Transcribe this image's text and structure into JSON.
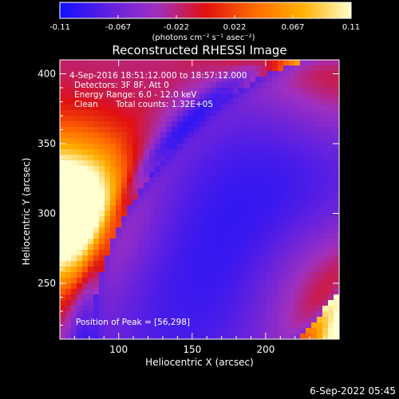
{
  "chart_data": {
    "type": "heatmap",
    "title": "Reconstructed RHESSI Image",
    "xlabel": "Heliocentric X (arcsec)",
    "ylabel": "Heliocentric Y (arcsec)",
    "xlim": [
      60,
      250
    ],
    "ylim": [
      210,
      410
    ],
    "x_ticks": [
      100,
      150,
      200
    ],
    "y_ticks": [
      250,
      300,
      350,
      400
    ],
    "colorbar": {
      "range": [
        -0.11,
        0.11
      ],
      "ticks": [
        "-0.11",
        "-0.067",
        "-0.022",
        "0.022",
        "0.067",
        "0.11"
      ],
      "unit_label": "(photons cm⁻² s⁻¹ asec⁻²)",
      "colormap_stops": [
        "#1010ff",
        "#6020e0",
        "#a030c0",
        "#e01010",
        "#ff6a00",
        "#ffb000",
        "#ffffd0"
      ]
    },
    "annotations": {
      "time_range": "4-Sep-2016 18:51:12.000 to 18:57:12.000",
      "detectors": "Detectors: 3F 8F, Att 0",
      "energy_range": "Energy Range: 6.0 - 12.0 keV",
      "algorithm": "Clean",
      "total_counts": "Total counts: 1.32E+05",
      "peak_position": "Position of Peak = [56,298]"
    },
    "field_description": {
      "minimum_center": [
        185,
        285
      ],
      "bright_regions": [
        {
          "location": "left edge",
          "center": [
            60,
            300
          ]
        },
        {
          "location": "top-right corner",
          "center": [
            250,
            410
          ]
        },
        {
          "location": "bottom-right",
          "center": [
            250,
            240
          ]
        }
      ]
    }
  },
  "footer": {
    "timestamp": "6-Sep-2022 05:45"
  }
}
